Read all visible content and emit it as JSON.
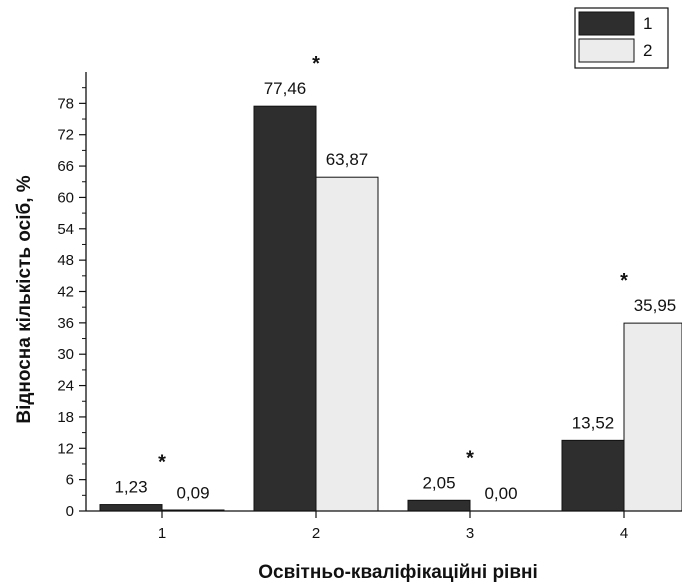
{
  "chart_data": {
    "type": "bar",
    "title": "",
    "xlabel": "Освітньо-кваліфікаційні рівні",
    "ylabel": "Відносна кількість осіб, %",
    "categories": [
      "1",
      "2",
      "3",
      "4"
    ],
    "ylim": [
      0,
      84
    ],
    "yticks": [
      0,
      6,
      12,
      18,
      24,
      30,
      36,
      42,
      48,
      54,
      60,
      66,
      72,
      78
    ],
    "grid": false,
    "legend_position": "top-right",
    "series": [
      {
        "name": "1",
        "color": "#2e2e2e",
        "values": [
          1.23,
          77.46,
          2.05,
          13.52
        ],
        "labels": [
          "1,23",
          "77,46",
          "2,05",
          "13,52"
        ]
      },
      {
        "name": "2",
        "color": "#ececec",
        "values": [
          0.09,
          63.87,
          0.0,
          35.95
        ],
        "labels": [
          "0,09",
          "63,87",
          "0,00",
          "35,95"
        ]
      }
    ],
    "annotations": [
      {
        "text": "*",
        "category": "1"
      },
      {
        "text": "*",
        "category": "2"
      },
      {
        "text": "*",
        "category": "3"
      },
      {
        "text": "*",
        "category": "4"
      }
    ]
  }
}
